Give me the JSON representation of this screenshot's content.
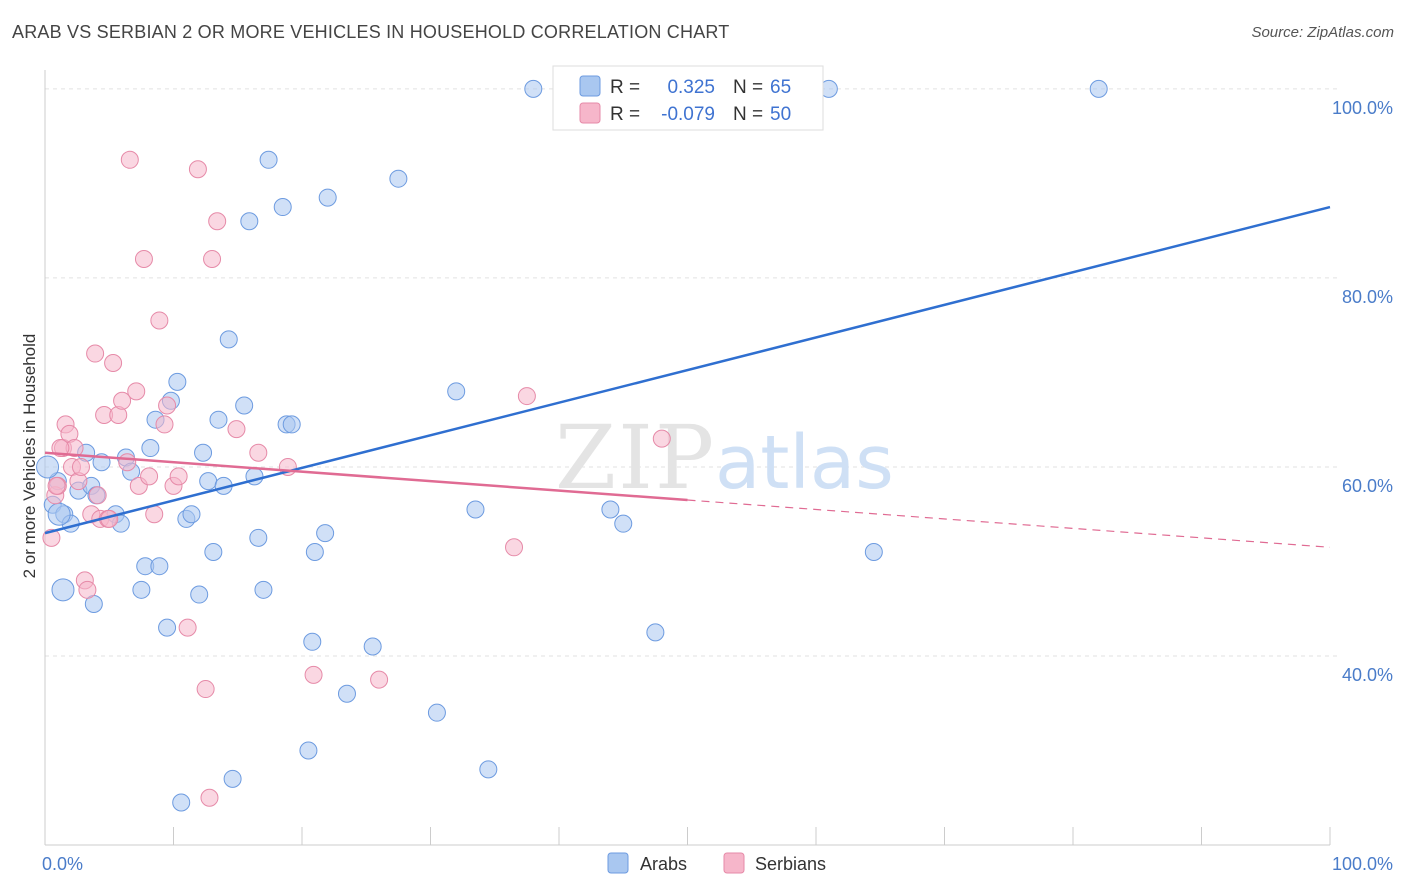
{
  "title": "ARAB VS SERBIAN 2 OR MORE VEHICLES IN HOUSEHOLD CORRELATION CHART",
  "source": "Source: ZipAtlas.com",
  "watermark": {
    "zip": "ZIP",
    "atlas": "atlas"
  },
  "chart_data": {
    "type": "scatter",
    "title": "ARAB VS SERBIAN 2 OR MORE VEHICLES IN HOUSEHOLD CORRELATION CHART",
    "xlabel": "",
    "ylabel": "2 or more Vehicles in Household",
    "xlim": [
      0,
      100
    ],
    "ylim": [
      20,
      102
    ],
    "x_tick_labels": [
      "0.0%",
      "100.0%"
    ],
    "y_ticks": [
      40,
      60,
      80,
      100
    ],
    "y_tick_labels": [
      "40.0%",
      "60.0%",
      "80.0%",
      "100.0%"
    ],
    "grid": true,
    "legend": {
      "placement": "top-center",
      "rows": [
        {
          "r_label": "R = ",
          "r_value": "0.325",
          "n_label": "N = ",
          "n_value": "65",
          "color": "#a9c7f0"
        },
        {
          "r_label": "R = ",
          "r_value": "-0.079",
          "n_label": "N = ",
          "n_value": "50",
          "color": "#f6b6ca"
        }
      ]
    },
    "series": [
      {
        "name": "Arabs",
        "color": "#a9c7f0",
        "stroke": "#6d9be0",
        "trend": {
          "x0": 0,
          "y0": 53.0,
          "x1": 100,
          "y1": 87.5,
          "color": "#2f6fd0"
        },
        "points": [
          [
            1.0,
            58.5
          ],
          [
            0.6,
            56.0
          ],
          [
            1.5,
            55.0
          ],
          [
            2.0,
            54.0
          ],
          [
            1.4,
            47.0
          ],
          [
            2.6,
            57.5
          ],
          [
            3.2,
            61.5
          ],
          [
            3.6,
            58.0
          ],
          [
            4.0,
            57.0
          ],
          [
            4.4,
            60.5
          ],
          [
            5.5,
            55.0
          ],
          [
            5.9,
            54.0
          ],
          [
            6.3,
            61.0
          ],
          [
            6.7,
            59.5
          ],
          [
            7.5,
            47.0
          ],
          [
            7.8,
            49.5
          ],
          [
            8.2,
            62.0
          ],
          [
            8.6,
            65.0
          ],
          [
            8.9,
            49.5
          ],
          [
            9.5,
            43.0
          ],
          [
            9.8,
            67.0
          ],
          [
            10.3,
            69.0
          ],
          [
            10.6,
            24.5
          ],
          [
            11.0,
            54.5
          ],
          [
            11.4,
            55.0
          ],
          [
            12.0,
            46.5
          ],
          [
            12.3,
            61.5
          ],
          [
            12.7,
            58.5
          ],
          [
            13.1,
            51.0
          ],
          [
            13.5,
            65.0
          ],
          [
            13.9,
            58.0
          ],
          [
            14.3,
            73.5
          ],
          [
            14.6,
            27.0
          ],
          [
            15.5,
            66.5
          ],
          [
            15.9,
            86.0
          ],
          [
            16.3,
            59.0
          ],
          [
            16.6,
            52.5
          ],
          [
            17.0,
            47.0
          ],
          [
            17.4,
            92.5
          ],
          [
            18.5,
            87.5
          ],
          [
            18.8,
            64.5
          ],
          [
            19.2,
            64.5
          ],
          [
            20.5,
            30.0
          ],
          [
            20.8,
            41.5
          ],
          [
            21.0,
            51.0
          ],
          [
            21.8,
            53.0
          ],
          [
            22.0,
            88.5
          ],
          [
            23.5,
            36.0
          ],
          [
            25.5,
            41.0
          ],
          [
            27.5,
            90.5
          ],
          [
            30.5,
            34.0
          ],
          [
            32.0,
            68.0
          ],
          [
            33.5,
            55.5
          ],
          [
            34.5,
            28.0
          ],
          [
            38.0,
            100.0
          ],
          [
            44.0,
            55.5
          ],
          [
            45.0,
            54.0
          ],
          [
            47.0,
            100.0
          ],
          [
            47.5,
            42.5
          ],
          [
            61.0,
            100.0
          ],
          [
            64.5,
            51.0
          ],
          [
            82.0,
            100.0
          ],
          [
            3.8,
            45.5
          ],
          [
            0.2,
            60.0
          ],
          [
            1.1,
            55.0
          ]
        ]
      },
      {
        "name": "Serbians",
        "color": "#f6b6ca",
        "stroke": "#e68aa8",
        "trend": {
          "x0": 0,
          "y0": 61.5,
          "x1": 50,
          "y1": 56.5,
          "x2": 100,
          "y2": 51.5,
          "color": "#e06b93"
        },
        "points": [
          [
            0.5,
            52.5
          ],
          [
            0.8,
            57.0
          ],
          [
            1.0,
            58.0
          ],
          [
            1.4,
            62.0
          ],
          [
            1.6,
            64.5
          ],
          [
            1.9,
            63.5
          ],
          [
            2.1,
            60.0
          ],
          [
            2.3,
            62.0
          ],
          [
            2.6,
            58.5
          ],
          [
            3.1,
            48.0
          ],
          [
            3.3,
            47.0
          ],
          [
            3.6,
            55.0
          ],
          [
            3.9,
            72.0
          ],
          [
            4.3,
            54.5
          ],
          [
            4.6,
            65.5
          ],
          [
            4.9,
            54.5
          ],
          [
            5.3,
            71.0
          ],
          [
            5.7,
            65.5
          ],
          [
            6.0,
            67.0
          ],
          [
            6.4,
            60.5
          ],
          [
            6.6,
            92.5
          ],
          [
            7.1,
            68.0
          ],
          [
            7.3,
            58.0
          ],
          [
            7.7,
            82.0
          ],
          [
            8.1,
            59.0
          ],
          [
            8.5,
            55.0
          ],
          [
            8.9,
            75.5
          ],
          [
            9.3,
            64.5
          ],
          [
            9.5,
            66.5
          ],
          [
            10.0,
            58.0
          ],
          [
            10.4,
            59.0
          ],
          [
            11.1,
            43.0
          ],
          [
            11.9,
            91.5
          ],
          [
            12.5,
            36.5
          ],
          [
            12.8,
            25.0
          ],
          [
            13.0,
            82.0
          ],
          [
            13.4,
            86.0
          ],
          [
            14.9,
            64.0
          ],
          [
            16.6,
            61.5
          ],
          [
            18.9,
            60.0
          ],
          [
            20.9,
            38.0
          ],
          [
            26.0,
            37.5
          ],
          [
            36.5,
            51.5
          ],
          [
            37.5,
            67.5
          ],
          [
            48.0,
            63.0
          ],
          [
            2.8,
            60.0
          ],
          [
            1.2,
            62.0
          ],
          [
            4.1,
            57.0
          ],
          [
            0.9,
            58.0
          ],
          [
            5.0,
            54.5
          ]
        ]
      }
    ]
  }
}
